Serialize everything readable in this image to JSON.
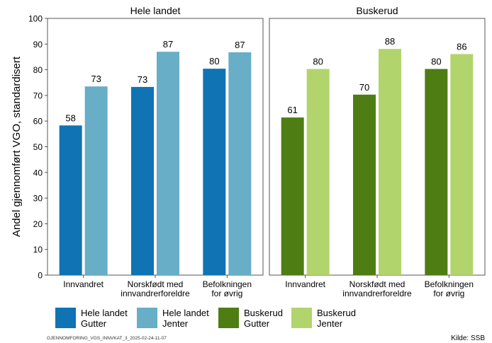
{
  "chart_data": {
    "type": "bar",
    "ylabel": "Andel gjennomført VGO, standardisert",
    "ylim": [
      0,
      100
    ],
    "yticks": [
      0,
      10,
      20,
      30,
      40,
      50,
      60,
      70,
      80,
      90,
      100
    ],
    "grid": false,
    "categories": [
      [
        "Innvandret"
      ],
      [
        "Norskfødt med",
        "innvandrerforeldre"
      ],
      [
        "Befolkningen",
        "for øvrig"
      ]
    ],
    "panels": [
      {
        "title": "Hele landet",
        "series": [
          {
            "name": "Hele landet Gutter",
            "color": "#0f73b4",
            "values": [
              58,
              73,
              80
            ],
            "bar_values": [
              58.3,
              73.3,
              80.4
            ]
          },
          {
            "name": "Hele landet Jenter",
            "color": "#67aec6",
            "values": [
              73,
              87,
              87
            ],
            "bar_values": [
              73.5,
              87.0,
              86.8
            ]
          }
        ]
      },
      {
        "title": "Buskerud",
        "series": [
          {
            "name": "Buskerud Gutter",
            "color": "#4e7d14",
            "values": [
              61,
              70,
              80
            ],
            "bar_values": [
              61.4,
              70.3,
              80.3
            ]
          },
          {
            "name": "Buskerud Jenter",
            "color": "#b2d46d",
            "values": [
              80,
              88,
              86
            ],
            "bar_values": [
              80.3,
              88.1,
              86.1
            ]
          }
        ]
      }
    ],
    "legend": {
      "placement": "bottom",
      "items": [
        {
          "lines": [
            "Hele landet",
            "Gutter"
          ],
          "color": "#0f73b4"
        },
        {
          "lines": [
            "Hele landet",
            "Jenter"
          ],
          "color": "#67aec6"
        },
        {
          "lines": [
            "Buskerud",
            "Gutter"
          ],
          "color": "#4e7d14"
        },
        {
          "lines": [
            "Buskerud",
            "Jenter"
          ],
          "color": "#b2d46d"
        }
      ]
    },
    "footer_id": "GJENNOMFORING_VGS_INNVKAT_3_2025-02-24-11-07",
    "source": "Kilde: SSB"
  }
}
